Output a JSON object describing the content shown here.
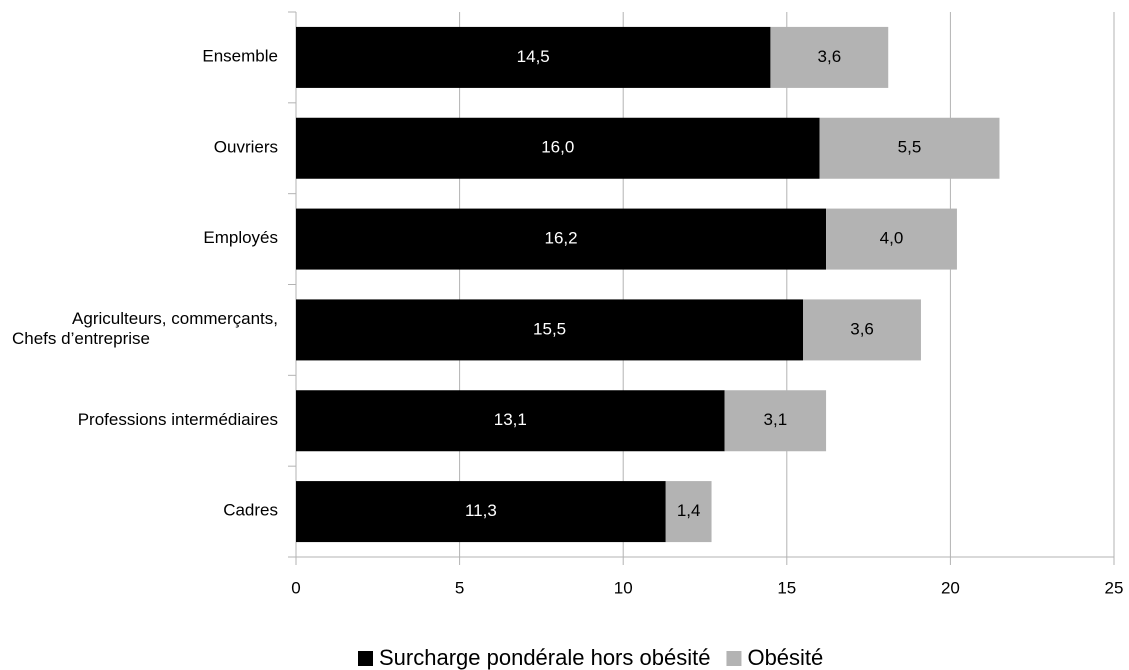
{
  "chart_data": {
    "type": "stacked-bar-horizontal",
    "categories": [
      "Ensemble",
      "Ouvriers",
      "Employés",
      "Agriculteurs, commerçants,\nChefs d’entreprise",
      "Professions intermédiaires",
      "Cadres"
    ],
    "series": [
      {
        "name": "Surcharge pondérale hors obésité",
        "color": "#000000",
        "label_color": "#ffffff",
        "values": [
          14.5,
          16.0,
          16.2,
          15.5,
          13.1,
          11.3
        ],
        "value_labels": [
          "14,5",
          "16,0",
          "16,2",
          "15,5",
          "13,1",
          "11,3"
        ]
      },
      {
        "name": "Obésité",
        "color": "#b3b3b3",
        "label_color": "#000000",
        "values": [
          3.6,
          5.5,
          4.0,
          3.6,
          3.1,
          1.4
        ],
        "value_labels": [
          "3,6",
          "5,5",
          "4,0",
          "3,6",
          "3,1",
          "1,4"
        ]
      }
    ],
    "xlim": [
      0,
      25
    ],
    "xticks": [
      0,
      5,
      10,
      15,
      20,
      25
    ],
    "grid": true,
    "legend": "bottom"
  }
}
